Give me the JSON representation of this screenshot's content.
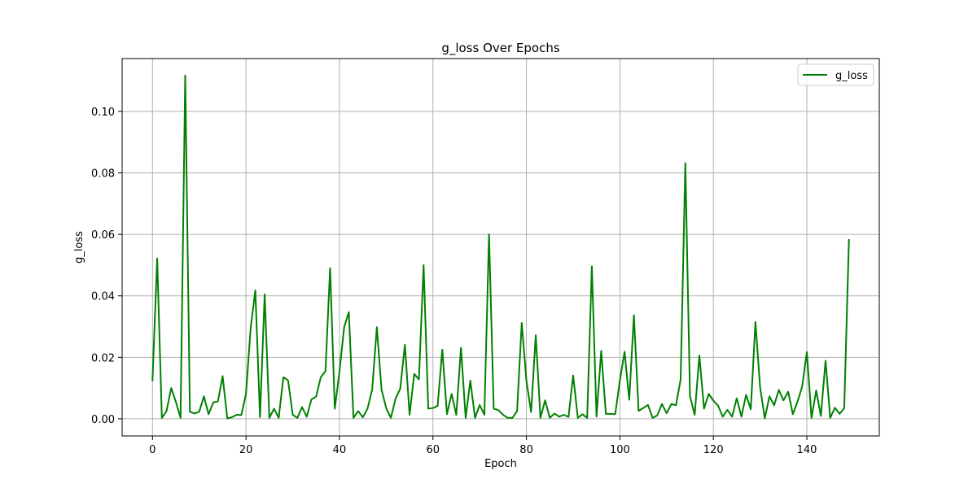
{
  "chart_data": {
    "type": "line",
    "title": "g_loss Over Epochs",
    "xlabel": "Epoch",
    "ylabel": "g_loss",
    "xlim": [
      -6.5,
      155.5
    ],
    "ylim": [
      -0.00558,
      0.1172
    ],
    "xticks": [
      0,
      20,
      40,
      60,
      80,
      100,
      120,
      140
    ],
    "yticks": [
      0.0,
      0.02,
      0.04,
      0.06,
      0.08,
      0.1
    ],
    "ytick_labels": [
      "0.00",
      "0.02",
      "0.04",
      "0.06",
      "0.08",
      "0.10"
    ],
    "grid": true,
    "legend_position": "top-right",
    "series": [
      {
        "name": "g_loss",
        "color": "#008000",
        "x": [
          0,
          1,
          2,
          3,
          4,
          5,
          6,
          7,
          8,
          9,
          10,
          11,
          12,
          13,
          14,
          15,
          16,
          17,
          18,
          19,
          20,
          21,
          22,
          23,
          24,
          25,
          26,
          27,
          28,
          29,
          30,
          31,
          32,
          33,
          34,
          35,
          36,
          37,
          38,
          39,
          40,
          41,
          42,
          43,
          44,
          45,
          46,
          47,
          48,
          49,
          50,
          51,
          52,
          53,
          54,
          55,
          56,
          57,
          58,
          59,
          60,
          61,
          62,
          63,
          64,
          65,
          66,
          67,
          68,
          69,
          70,
          71,
          72,
          73,
          74,
          75,
          76,
          77,
          78,
          79,
          80,
          81,
          82,
          83,
          84,
          85,
          86,
          87,
          88,
          89,
          90,
          91,
          92,
          93,
          94,
          95,
          96,
          97,
          98,
          99,
          100,
          101,
          102,
          103,
          104,
          105,
          106,
          107,
          108,
          109,
          110,
          111,
          112,
          113,
          114,
          115,
          116,
          117,
          118,
          119,
          120,
          121,
          122,
          123,
          124,
          125,
          126,
          127,
          128,
          129,
          130,
          131,
          132,
          133,
          134,
          135,
          136,
          137,
          138,
          139,
          140,
          141,
          142,
          143,
          144,
          145,
          146,
          147,
          148,
          149
        ],
        "values": [
          0.0125,
          0.0522,
          0.0003,
          0.0025,
          0.01,
          0.0055,
          0.0003,
          0.1117,
          0.0023,
          0.0017,
          0.0023,
          0.0073,
          0.0015,
          0.0053,
          0.0057,
          0.0139,
          0.0001,
          0.0005,
          0.0013,
          0.0012,
          0.0081,
          0.0295,
          0.0418,
          0.0005,
          0.0405,
          0.0003,
          0.0033,
          0.0003,
          0.0135,
          0.0125,
          0.0013,
          0.0003,
          0.0038,
          0.0007,
          0.0063,
          0.0072,
          0.0135,
          0.0155,
          0.049,
          0.0033,
          0.0153,
          0.0298,
          0.0347,
          0.0003,
          0.0025,
          0.0005,
          0.0033,
          0.0095,
          0.0298,
          0.0095,
          0.0035,
          0.0003,
          0.0065,
          0.0098,
          0.0241,
          0.0013,
          0.0146,
          0.0128,
          0.05,
          0.0033,
          0.0035,
          0.0042,
          0.0225,
          0.0015,
          0.0081,
          0.0013,
          0.0231,
          0.0003,
          0.0124,
          0.0003,
          0.0045,
          0.0013,
          0.06,
          0.0033,
          0.0028,
          0.0013,
          0.0003,
          0.0003,
          0.0025,
          0.0312,
          0.0124,
          0.0022,
          0.0272,
          0.0003,
          0.006,
          0.0003,
          0.0017,
          0.0007,
          0.0013,
          0.0006,
          0.0141,
          0.0003,
          0.0015,
          0.0003,
          0.0496,
          0.0007,
          0.0221,
          0.0016,
          0.0016,
          0.0015,
          0.0125,
          0.0218,
          0.0062,
          0.0337,
          0.0026,
          0.0035,
          0.0045,
          0.0003,
          0.0011,
          0.0048,
          0.0018,
          0.0048,
          0.0044,
          0.0129,
          0.0832,
          0.0073,
          0.0013,
          0.0206,
          0.0033,
          0.0081,
          0.0059,
          0.0043,
          0.0007,
          0.0029,
          0.0007,
          0.0067,
          0.0007,
          0.0078,
          0.0031,
          0.0315,
          0.0102,
          0.0002,
          0.0073,
          0.0044,
          0.0094,
          0.006,
          0.0088,
          0.0015,
          0.0056,
          0.0105,
          0.0217,
          0.0003,
          0.0092,
          0.0009,
          0.0189,
          0.0003,
          0.0036,
          0.0016,
          0.0035,
          0.0582
        ]
      }
    ]
  }
}
